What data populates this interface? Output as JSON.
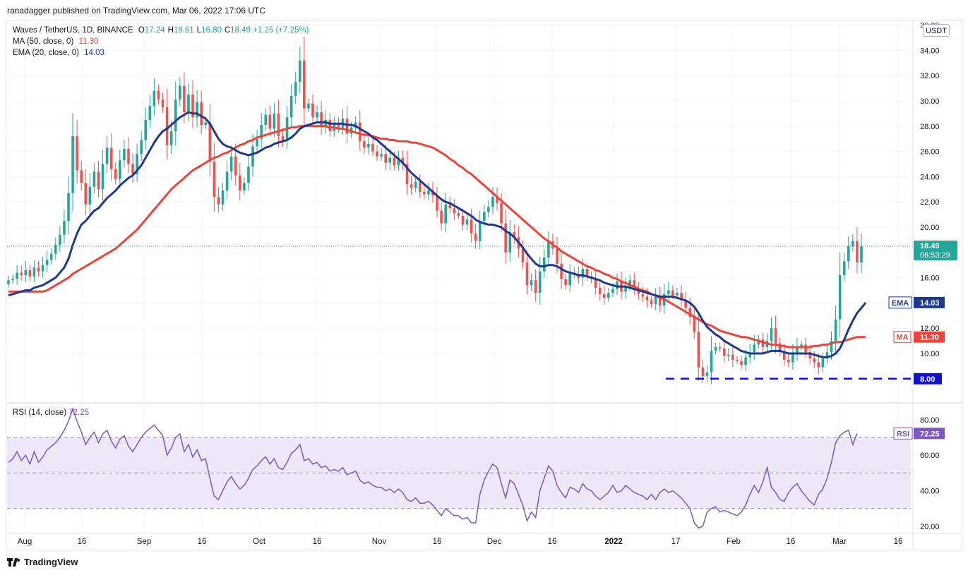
{
  "publisher_line": "ranadagger published on TradingView.com, Mar 06, 2022 17:06 UTC",
  "legend": {
    "symbol": "Waves / TetherUS, 1D, BINANCE",
    "ohlc": [
      {
        "label": "O",
        "value": "17.24"
      },
      {
        "label": "H",
        "value": "19.61"
      },
      {
        "label": "L",
        "value": "16.80"
      },
      {
        "label": "C",
        "value": "18.49"
      }
    ],
    "change": "+1.25 (+7.25%)",
    "ma_label": "MA (50, close, 0)",
    "ma_value": "11.30",
    "ema_label": "EMA (20, close, 0)",
    "ema_value": "14.03",
    "rsi_label": "RSI (14, close)",
    "rsi_value": "72.25"
  },
  "currency": "USDT",
  "badges": {
    "price": "18.49",
    "countdown": "06:53:29",
    "ema_tag": "EMA",
    "ema_value": "14.03",
    "ma_tag": "MA",
    "ma_value": "11.30",
    "support": "8.00",
    "rsi_tag": "RSI",
    "rsi_value": "72.25"
  },
  "footer_brand": "TradingView",
  "colors": {
    "up": "#26a69a",
    "down": "#ef5350",
    "ema": "#1e3a8a",
    "ma": "#e8453c",
    "support": "#1010d0",
    "rsi_line": "#7e57c2",
    "rsi_band": "#ede7f6"
  },
  "chart_data": [
    {
      "type": "candlestick",
      "title": "Waves / TetherUS, 1D, BINANCE",
      "x_tick_labels": [
        "Aug",
        "16",
        "Sep",
        "16",
        "Oct",
        "16",
        "Nov",
        "16",
        "Dec",
        "16",
        "2022",
        "17",
        "Feb",
        "16",
        "Mar",
        "16"
      ],
      "y_tick_labels": [
        "10.00",
        "12.00",
        "14.00",
        "16.00",
        "18.00",
        "20.00",
        "22.00",
        "24.00",
        "26.00",
        "28.00",
        "30.00",
        "32.00",
        "34.00",
        "36.00"
      ],
      "ylim": [
        8,
        36
      ],
      "closes": [
        15.8,
        15.9,
        16.4,
        16.2,
        16.6,
        16.1,
        16.8,
        16.5,
        17.0,
        17.4,
        17.9,
        18.6,
        19.4,
        20.5,
        22.7,
        27.2,
        24.5,
        23.5,
        21.8,
        23.2,
        24.4,
        23.0,
        25.0,
        26.3,
        24.6,
        23.8,
        25.3,
        26.2,
        25.0,
        24.2,
        25.8,
        26.9,
        28.5,
        29.6,
        30.8,
        30.1,
        29.5,
        26.5,
        27.6,
        30.1,
        31.2,
        29.1,
        30.5,
        28.7,
        29.9,
        28.1,
        28.3,
        25.2,
        22.4,
        21.8,
        22.9,
        24.4,
        25.6,
        24.1,
        22.9,
        23.5,
        24.8,
        26.4,
        27.0,
        28.1,
        28.9,
        27.8,
        29.0,
        27.2,
        26.9,
        28.7,
        30.4,
        31.5,
        33.2,
        29.4,
        29.8,
        28.7,
        29.1,
        28.0,
        28.5,
        27.6,
        28.2,
        27.9,
        28.6,
        27.4,
        27.9,
        28.3,
        26.8,
        26.3,
        26.6,
        26.0,
        25.6,
        25.8,
        25.1,
        25.5,
        24.9,
        25.5,
        25.0,
        23.4,
        23.1,
        23.6,
        22.8,
        22.6,
        22.9,
        22.5,
        21.3,
        20.3,
        21.8,
        21.5,
        21.1,
        20.9,
        20.2,
        20.6,
        19.5,
        18.9,
        20.5,
        21.2,
        21.6,
        22.4,
        21.9,
        20.3,
        18.0,
        19.6,
        19.2,
        18.3,
        17.2,
        15.4,
        15.8,
        14.8,
        16.5,
        17.6,
        18.9,
        18.3,
        17.1,
        15.9,
        15.4,
        16.4,
        16.3,
        16.0,
        16.7,
        16.1,
        15.9,
        15.2,
        14.7,
        14.4,
        14.8,
        15.1,
        15.7,
        14.9,
        15.3,
        15.8,
        15.1,
        14.7,
        14.5,
        14.2,
        13.9,
        14.6,
        13.8,
        14.7,
        15.0,
        14.6,
        14.8,
        14.2,
        13.6,
        12.9,
        11.7,
        8.9,
        8.2,
        8.5,
        10.2,
        10.5,
        10.4,
        9.8,
        9.9,
        9.5,
        9.4,
        9.1,
        9.7,
        10.1,
        10.7,
        11.1,
        10.5,
        11.0,
        12.0,
        10.8,
        10.2,
        9.5,
        9.3,
        10.0,
        10.5,
        10.7,
        10.1,
        9.6,
        9.3,
        8.9,
        9.6,
        10.1,
        11.0,
        12.7,
        16.2,
        17.3,
        18.5,
        18.9,
        17.2,
        18.49
      ],
      "ema_20": [
        14.6,
        14.7,
        14.8,
        14.9,
        15.0,
        15.0,
        15.2,
        15.3,
        15.4,
        15.6,
        15.8,
        16.0,
        16.4,
        16.8,
        17.5,
        18.6,
        19.5,
        20.2,
        20.5,
        20.9,
        21.3,
        21.5,
        21.9,
        22.3,
        22.6,
        22.9,
        23.3,
        23.6,
        23.9,
        24.1,
        24.5,
        24.9,
        25.5,
        26.1,
        26.7,
        27.2,
        27.6,
        27.8,
        28.1,
        28.4,
        28.7,
        28.9,
        29.1,
        29.0,
        29.0,
        28.8,
        28.6,
        28.2,
        27.6,
        27.0,
        26.6,
        26.4,
        26.3,
        26.1,
        25.9,
        25.8,
        25.7,
        25.8,
        25.9,
        26.1,
        26.3,
        26.4,
        26.6,
        26.7,
        26.8,
        26.9,
        27.1,
        27.4,
        27.8,
        28.0,
        28.1,
        28.2,
        28.3,
        28.3,
        28.3,
        28.2,
        28.2,
        28.2,
        28.2,
        28.1,
        28.1,
        28.0,
        27.8,
        27.6,
        27.4,
        27.1,
        26.9,
        26.6,
        26.3,
        26.0,
        25.7,
        25.4,
        25.1,
        24.7,
        24.3,
        24.0,
        23.7,
        23.4,
        23.1,
        22.8,
        22.5,
        22.2,
        22.0,
        21.9,
        21.7,
        21.5,
        21.3,
        21.1,
        20.9,
        20.6,
        20.4,
        20.3,
        20.2,
        20.2,
        20.1,
        20.0,
        19.7,
        19.5,
        19.2,
        18.8,
        18.4,
        17.9,
        17.5,
        17.1,
        16.9,
        16.9,
        17.0,
        17.0,
        16.9,
        16.7,
        16.5,
        16.4,
        16.3,
        16.2,
        16.2,
        16.1,
        16.0,
        15.9,
        15.8,
        15.6,
        15.5,
        15.4,
        15.3,
        15.3,
        15.3,
        15.2,
        15.1,
        15.0,
        14.9,
        14.8,
        14.7,
        14.6,
        14.5,
        14.5,
        14.5,
        14.5,
        14.4,
        14.3,
        14.2,
        14.0,
        13.7,
        13.2,
        12.6,
        12.1,
        11.8,
        11.5,
        11.3,
        11.0,
        10.8,
        10.6,
        10.4,
        10.2,
        10.1,
        10.0,
        10.0,
        10.0,
        10.0,
        10.1,
        10.2,
        10.2,
        10.2,
        10.1,
        10.0,
        10.0,
        10.0,
        10.0,
        10.0,
        10.0,
        9.9,
        9.8,
        9.7,
        9.7,
        9.8,
        10.0,
        10.4,
        11.1,
        11.9,
        12.6,
        13.2,
        13.6,
        14.03
      ],
      "ma_50": [
        14.9,
        14.9,
        14.9,
        14.9,
        14.9,
        14.9,
        14.9,
        14.9,
        14.9,
        15.0,
        15.2,
        15.4,
        15.6,
        15.8,
        16.0,
        16.3,
        16.5,
        16.7,
        16.9,
        17.1,
        17.3,
        17.5,
        17.7,
        17.9,
        18.1,
        18.3,
        18.6,
        18.9,
        19.2,
        19.5,
        19.8,
        20.2,
        20.6,
        21.0,
        21.4,
        21.8,
        22.2,
        22.6,
        23.0,
        23.3,
        23.6,
        23.9,
        24.2,
        24.5,
        24.7,
        24.9,
        25.1,
        25.3,
        25.5,
        25.6,
        25.8,
        25.9,
        26.1,
        26.3,
        26.5,
        26.6,
        26.8,
        26.9,
        27.1,
        27.2,
        27.3,
        27.4,
        27.5,
        27.6,
        27.7,
        27.8,
        27.9,
        27.9,
        28.0,
        28.0,
        28.0,
        28.0,
        28.0,
        28.0,
        28.0,
        27.9,
        27.9,
        27.8,
        27.8,
        27.7,
        27.6,
        27.5,
        27.4,
        27.3,
        27.3,
        27.2,
        27.1,
        27.0,
        27.0,
        26.9,
        26.9,
        26.8,
        26.8,
        26.8,
        26.7,
        26.7,
        26.6,
        26.5,
        26.4,
        26.3,
        26.1,
        25.9,
        25.7,
        25.4,
        25.2,
        24.9,
        24.7,
        24.4,
        24.2,
        23.9,
        23.6,
        23.3,
        23.0,
        22.7,
        22.4,
        22.1,
        21.8,
        21.5,
        21.2,
        20.9,
        20.6,
        20.3,
        20.0,
        19.7,
        19.4,
        19.1,
        18.9,
        18.6,
        18.4,
        18.1,
        17.9,
        17.7,
        17.5,
        17.3,
        17.1,
        16.9,
        16.8,
        16.6,
        16.5,
        16.3,
        16.2,
        16.0,
        15.9,
        15.7,
        15.6,
        15.4,
        15.3,
        15.1,
        15.0,
        14.9,
        14.7,
        14.6,
        14.4,
        14.3,
        14.1,
        13.9,
        13.7,
        13.5,
        13.3,
        13.1,
        12.9,
        12.7,
        12.5,
        12.3,
        12.2,
        12.0,
        11.8,
        11.7,
        11.6,
        11.5,
        11.4,
        11.3,
        11.3,
        11.2,
        11.1,
        11.0,
        10.9,
        10.8,
        10.7,
        10.7,
        10.6,
        10.6,
        10.5,
        10.5,
        10.5,
        10.5,
        10.5,
        10.5,
        10.6,
        10.6,
        10.7,
        10.7,
        10.8,
        10.9,
        10.9,
        11.0,
        11.1,
        11.2,
        11.3,
        11.3,
        11.3
      ],
      "support_level": 8.0
    },
    {
      "type": "line",
      "title": "RSI (14, close)",
      "y_tick_labels": [
        "20.00",
        "40.00",
        "60.00",
        "80.00"
      ],
      "ylim": [
        18,
        88
      ],
      "bands": [
        30,
        50,
        70
      ],
      "values": [
        56,
        58,
        62,
        57,
        60,
        55,
        62,
        56,
        59,
        63,
        65,
        67,
        70,
        74,
        79,
        86,
        79,
        73,
        66,
        70,
        73,
        67,
        72,
        74,
        68,
        64,
        69,
        71,
        65,
        62,
        66,
        70,
        73,
        75,
        77,
        74,
        71,
        60,
        64,
        70,
        72,
        62,
        66,
        59,
        63,
        57,
        58,
        47,
        37,
        35,
        40,
        45,
        48,
        44,
        41,
        43,
        47,
        52,
        54,
        57,
        59,
        55,
        58,
        53,
        52,
        56,
        61,
        63,
        66,
        57,
        58,
        55,
        56,
        53,
        54,
        51,
        52,
        51,
        53,
        49,
        50,
        51,
        46,
        44,
        45,
        43,
        42,
        42,
        40,
        41,
        39,
        41,
        39,
        35,
        34,
        36,
        33,
        33,
        34,
        32,
        29,
        26,
        30,
        28,
        26,
        26,
        24,
        25,
        22,
        22,
        38,
        46,
        51,
        55,
        53,
        44,
        36,
        46,
        44,
        38,
        32,
        23,
        28,
        25,
        40,
        47,
        54,
        51,
        43,
        39,
        36,
        42,
        41,
        39,
        44,
        41,
        40,
        37,
        35,
        37,
        39,
        43,
        39,
        40,
        43,
        41,
        39,
        38,
        37,
        35,
        38,
        35,
        39,
        41,
        39,
        40,
        38,
        36,
        33,
        30,
        22,
        19,
        20,
        28,
        30,
        31,
        28,
        29,
        28,
        27,
        26,
        28,
        32,
        38,
        43,
        39,
        45,
        53,
        42,
        39,
        35,
        34,
        39,
        42,
        44,
        40,
        37,
        34,
        32,
        38,
        41,
        47,
        56,
        67,
        71,
        73,
        74,
        66,
        72.25
      ]
    }
  ]
}
